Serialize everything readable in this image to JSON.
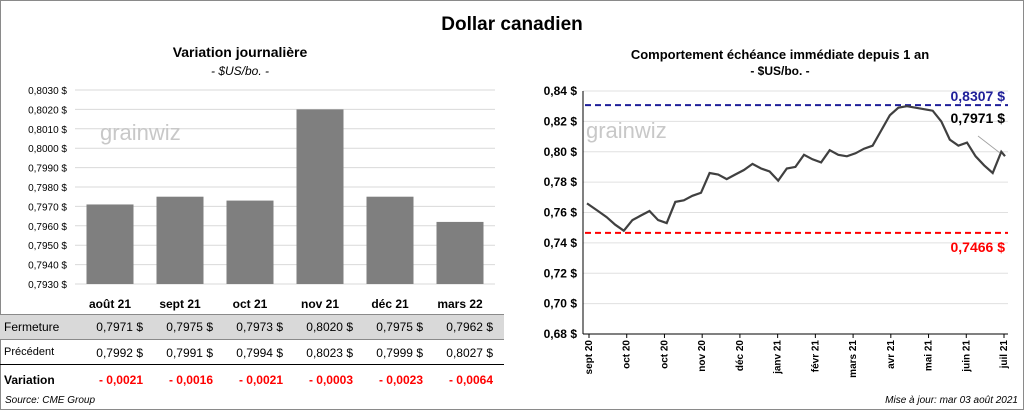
{
  "page": {
    "title": "Dollar canadien",
    "source": "Source: CME Group",
    "update": "Mise à jour: mar 03 août 2021",
    "watermark": "grainwiz"
  },
  "left_panel": {
    "title": "Variation  journalière",
    "subtitle": "- $US/bo. -",
    "rows": {
      "fermeture_label": "Fermeture",
      "precedent_label": "Précédent",
      "variation_label": "Variation",
      "fermeture": [
        "0,7971  $",
        "0,7975  $",
        "0,7973  $",
        "0,8020  $",
        "0,7975  $",
        "0,7962  $"
      ],
      "precedent": [
        "0,7992  $",
        "0,7991  $",
        "0,7994  $",
        "0,8023  $",
        "0,7999  $",
        "0,8027  $"
      ],
      "variation": [
        "- 0,0021",
        "- 0,0016",
        "- 0,0021",
        "- 0,0003",
        "- 0,0023",
        "- 0,0064"
      ]
    }
  },
  "right_panel": {
    "title": "Comportement échéance immédiate depuis 1 an",
    "subtitle": "- $US/bo. -",
    "high_label": "0,8307  $",
    "last_label": "0,7971  $",
    "low_label": "0,7466  $"
  },
  "colors": {
    "bar": "#7f7f7f",
    "line": "#404040",
    "high": "#1f1f99",
    "low": "#ff0000",
    "negative": "#ff0000"
  },
  "chart_data": [
    {
      "type": "bar",
      "categories": [
        "août 21",
        "sept 21",
        "oct 21",
        "nov 21",
        "déc 21",
        "mars 22"
      ],
      "values": [
        0.7971,
        0.7975,
        0.7973,
        0.802,
        0.7975,
        0.7962
      ],
      "title": "Variation  journalière",
      "ylabel": "",
      "ylim": [
        0.793,
        0.803
      ],
      "yticks": [
        "0,7930 $",
        "0,7940 $",
        "0,7950 $",
        "0,7960 $",
        "0,7970 $",
        "0,7980 $",
        "0,7990 $",
        "0,8000 $",
        "0,8010 $",
        "0,8020 $",
        "0,8030 $"
      ],
      "grid": true
    },
    {
      "type": "line",
      "title": "Comportement échéance immédiate depuis 1 an",
      "x": [
        "2020-08-27",
        "2020-09-05",
        "2020-09-12",
        "2020-09-19",
        "2020-09-26",
        "2020-10-03",
        "2020-10-10",
        "2020-10-17",
        "2020-10-24",
        "2020-10-31",
        "2020-11-07",
        "2020-11-14",
        "2020-11-21",
        "2020-11-28",
        "2020-12-05",
        "2020-12-12",
        "2020-12-19",
        "2020-12-26",
        "2021-01-02",
        "2021-01-09",
        "2021-01-16",
        "2021-01-23",
        "2021-01-30",
        "2021-02-06",
        "2021-02-13",
        "2021-02-20",
        "2021-02-27",
        "2021-03-06",
        "2021-03-13",
        "2021-03-20",
        "2021-03-27",
        "2021-04-03",
        "2021-04-10",
        "2021-04-17",
        "2021-04-24",
        "2021-05-01",
        "2021-05-08",
        "2021-05-15",
        "2021-05-22",
        "2021-05-29",
        "2021-06-05",
        "2021-06-12",
        "2021-06-19",
        "2021-06-26",
        "2021-07-03",
        "2021-07-10",
        "2021-07-17",
        "2021-07-24",
        "2021-07-31",
        "2021-08-03"
      ],
      "y": [
        0.766,
        0.761,
        0.757,
        0.752,
        0.748,
        0.755,
        0.758,
        0.761,
        0.755,
        0.753,
        0.767,
        0.768,
        0.771,
        0.773,
        0.786,
        0.785,
        0.782,
        0.785,
        0.788,
        0.792,
        0.789,
        0.787,
        0.781,
        0.789,
        0.79,
        0.798,
        0.795,
        0.793,
        0.801,
        0.798,
        0.797,
        0.799,
        0.802,
        0.804,
        0.814,
        0.824,
        0.829,
        0.83,
        0.829,
        0.828,
        0.827,
        0.82,
        0.808,
        0.804,
        0.806,
        0.797,
        0.791,
        0.786,
        0.8,
        0.7971
      ],
      "xticks": [
        "sept 20",
        "oct 20",
        "oct 20",
        "nov 20",
        "déc 20",
        "janv 21",
        "févr 21",
        "mars 21",
        "avr 21",
        "mai 21",
        "juin 21",
        "juil 21"
      ],
      "yticks": [
        "0,68 $",
        "0,70 $",
        "0,72 $",
        "0,74 $",
        "0,76 $",
        "0,78 $",
        "0,80 $",
        "0,82 $",
        "0,84 $"
      ],
      "ylim": [
        0.68,
        0.84
      ],
      "reference_lines": [
        {
          "value": 0.8307,
          "style": "dashed",
          "color": "#1f1f99"
        },
        {
          "value": 0.7466,
          "style": "dashed",
          "color": "#ff0000"
        }
      ],
      "grid": true
    }
  ]
}
